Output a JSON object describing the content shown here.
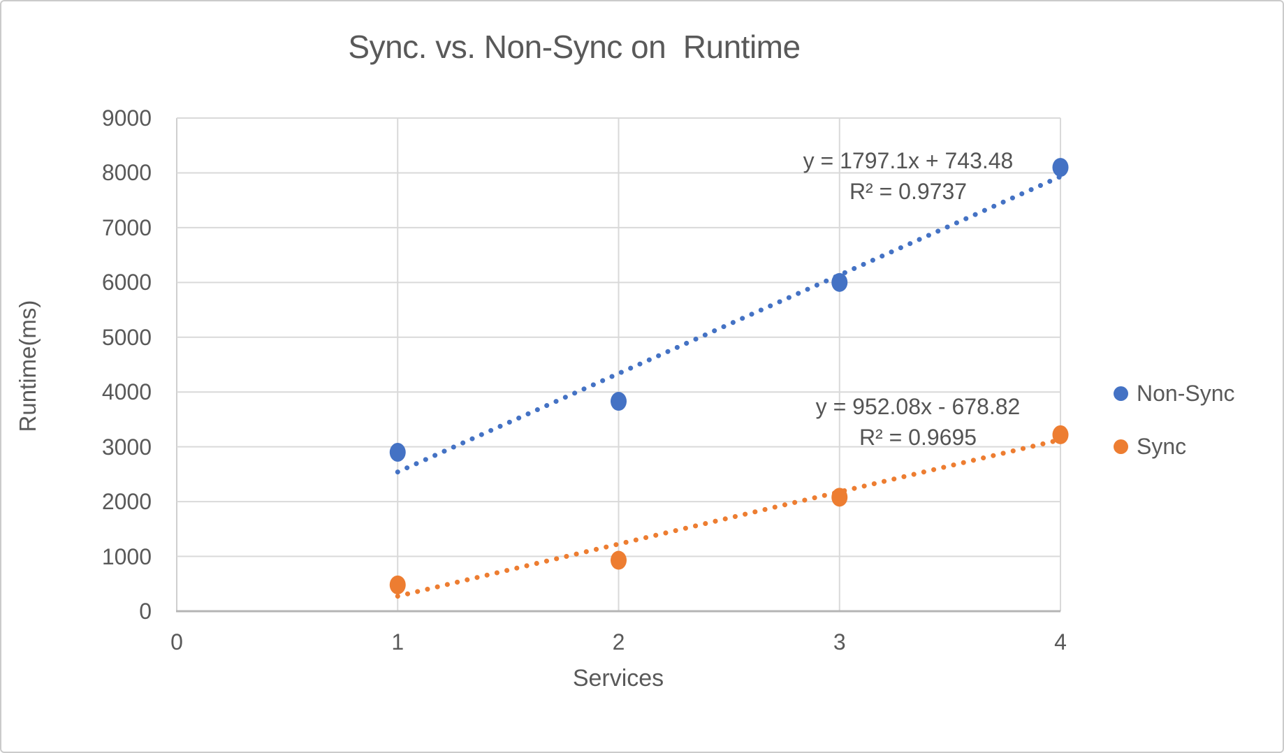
{
  "window": {
    "background": "#FFFFFF",
    "border_color": "#CBCBCB"
  },
  "chart_data": {
    "type": "scatter",
    "title": "Sync. vs. Non-Sync on  Runtime",
    "xlabel": "Services",
    "ylabel": "Runtime(ms)",
    "xlim": [
      0,
      4
    ],
    "ylim": [
      0,
      9000
    ],
    "x_ticks": [
      "0",
      "1",
      "2",
      "3",
      "4"
    ],
    "y_ticks": [
      "0",
      "1000",
      "2000",
      "3000",
      "4000",
      "5000",
      "6000",
      "7000",
      "8000",
      "9000"
    ],
    "grid": true,
    "legend_position": "right-center",
    "series": [
      {
        "name": "Non-Sync",
        "color": "#4472C4",
        "marker": "circle",
        "x": [
          1,
          2,
          3,
          4
        ],
        "values": [
          2900,
          3830,
          6000,
          8100
        ],
        "trendline": {
          "type": "linear",
          "style": "dotted",
          "slope": 1797.1,
          "intercept": 743.48,
          "equation_label": "y = 1797.1x + 743.48",
          "r2_label": "R² = 0.9737",
          "x_range": [
            1,
            4
          ]
        }
      },
      {
        "name": "Sync",
        "color": "#ED7D31",
        "marker": "circle",
        "x": [
          1,
          2,
          3,
          4
        ],
        "values": [
          480,
          930,
          2080,
          3220
        ],
        "trendline": {
          "type": "linear",
          "style": "dotted",
          "slope": 952.08,
          "intercept": -678.82,
          "equation_label": "y = 952.08x - 678.82",
          "r2_label": "R² = 0.9695",
          "x_range": [
            1,
            4
          ]
        }
      }
    ],
    "axis_colors": {
      "gridline": "#D9D9D9",
      "x_axis_line": "#B5B5B5",
      "y_axis_line": "#CFCFCF",
      "tick_text": "#595959",
      "annotation_text": "#545454"
    }
  },
  "legend": {
    "items": [
      {
        "label": "Non-Sync",
        "color": "#4472C4"
      },
      {
        "label": "Sync",
        "color": "#ED7D31"
      }
    ]
  }
}
